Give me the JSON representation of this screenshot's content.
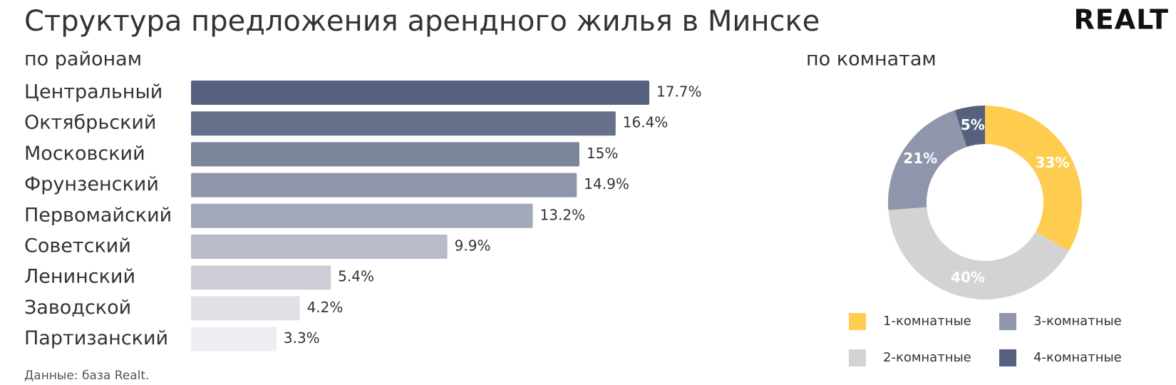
{
  "title": "Структура предложения арендного жилья в Минске",
  "logo": "REALT",
  "source": "Данные: база Realt.",
  "chart_data": [
    {
      "type": "hbar",
      "subtitle": "по районам",
      "categories": [
        "Центральный",
        "Октябрьский",
        "Московский",
        "Фрунзенский",
        "Первомайский",
        "Советский",
        "Ленинский",
        "Заводской",
        "Партизанский"
      ],
      "values": [
        17.7,
        16.4,
        15,
        14.9,
        13.2,
        9.9,
        5.4,
        4.2,
        3.3
      ],
      "value_labels": [
        "17.7%",
        "16.4%",
        "15%",
        "14.9%",
        "13.2%",
        "9.9%",
        "5.4%",
        "4.2%",
        "3.3%"
      ],
      "colors": [
        "#56617f",
        "#67718c",
        "#7c849c",
        "#8f95ab",
        "#a3a8ba",
        "#b8bbc9",
        "#cccdd6",
        "#e0e0e6",
        "#eeedf2"
      ]
    },
    {
      "type": "donut",
      "subtitle": "по комнатам",
      "categories": [
        "1-комнатные",
        "2-комнатные",
        "3-комнатные",
        "4-комнатные"
      ],
      "values": [
        33,
        40,
        21,
        5
      ],
      "value_labels": [
        "33%",
        "40%",
        "21%",
        "5%"
      ],
      "colors": [
        "#fecd50",
        "#d4d3d4",
        "#8f95ab",
        "#56617f"
      ]
    }
  ]
}
